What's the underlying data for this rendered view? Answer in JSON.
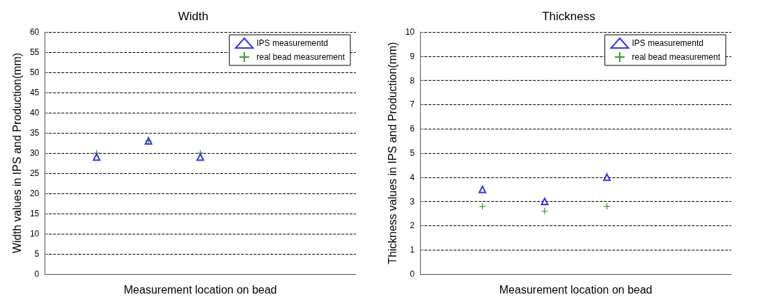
{
  "chart_data": [
    {
      "type": "scatter",
      "title": "Width",
      "xlabel": "Measurement location on bead",
      "ylabel": "Width values in IPS and Production(mm)",
      "categories": [
        null,
        null,
        null,
        null,
        null,
        null,
        null
      ],
      "ylim": [
        0,
        60
      ],
      "yticks": [
        0,
        5,
        10,
        15,
        20,
        25,
        30,
        35,
        40,
        45,
        50,
        55,
        60
      ],
      "grid": "y",
      "legend": "top right",
      "tick_labels": "y",
      "series": [
        {
          "name": "IPS measurementd",
          "color": "#0000ff",
          "marker": "triangle",
          "values": [
            null,
            29,
            33,
            29,
            null,
            null,
            null
          ]
        },
        {
          "name": "real bead measurement",
          "color": "#008000",
          "marker": "cross",
          "values": [
            null,
            30,
            33,
            30,
            null,
            null,
            null
          ]
        }
      ]
    },
    {
      "type": "scatter",
      "title": "Thickness",
      "xlabel": "Measurement location on bead",
      "ylabel": "Thickness values in IPS and Production(mm)",
      "categories": [
        null,
        null,
        null,
        null,
        null,
        null,
        null,
        null,
        null,
        null,
        null
      ],
      "ylim": [
        0,
        10
      ],
      "yticks": [
        0,
        1,
        2,
        3,
        4,
        5,
        6,
        7,
        8,
        9,
        10
      ],
      "grid": "y",
      "legend": "top right",
      "tick_labels": "y",
      "series": [
        {
          "name": "IPS measurementd",
          "color": "#0000ff",
          "marker": "triangle",
          "values": [
            null,
            null,
            3.5,
            null,
            3.0,
            null,
            4.0,
            null,
            null,
            null,
            null
          ]
        },
        {
          "name": "real bead measurement",
          "color": "#008000",
          "marker": "cross",
          "values": [
            null,
            null,
            2.8,
            null,
            2.6,
            null,
            2.8,
            null,
            null,
            null,
            null
          ]
        }
      ]
    }
  ]
}
